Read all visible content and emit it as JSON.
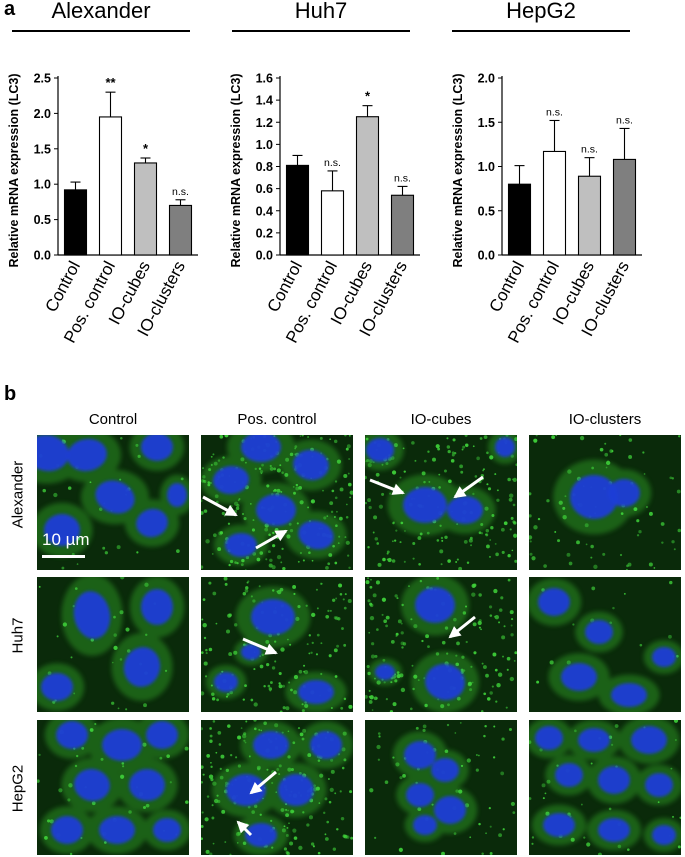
{
  "panel_a_label": "a",
  "panel_b_label": "b",
  "cell_lines": [
    "Alexander",
    "Huh7",
    "HepG2"
  ],
  "chart_data": [
    {
      "type": "bar",
      "title": "Alexander",
      "ylabel": "Relative mRNA expression (LC3)",
      "ylim": [
        0,
        2.5
      ],
      "yticks": [
        "0.0",
        "0.5",
        "1.0",
        "1.5",
        "2.0",
        "2.5"
      ],
      "categories": [
        "Control",
        "Pos. control",
        "IO-cubes",
        "IO-clusters"
      ],
      "values": [
        0.92,
        1.95,
        1.3,
        0.7
      ],
      "errors": [
        0.11,
        0.35,
        0.07,
        0.08
      ],
      "significance": [
        "",
        "**",
        "*",
        "n.s."
      ],
      "bar_colors": [
        "#000000",
        "#ffffff",
        "#bfbfbf",
        "#7f7f7f"
      ]
    },
    {
      "type": "bar",
      "title": "Huh7",
      "ylabel": "Relative mRNA expression (LC3)",
      "ylim": [
        0,
        1.6
      ],
      "yticks": [
        "0.0",
        "0.2",
        "0.4",
        "0.6",
        "0.8",
        "1.0",
        "1.2",
        "1.4",
        "1.6"
      ],
      "categories": [
        "Control",
        "Pos. control",
        "IO-cubes",
        "IO-clusters"
      ],
      "values": [
        0.81,
        0.58,
        1.25,
        0.54
      ],
      "errors": [
        0.09,
        0.18,
        0.1,
        0.08
      ],
      "significance": [
        "",
        "n.s.",
        "*",
        "n.s."
      ],
      "bar_colors": [
        "#000000",
        "#ffffff",
        "#bfbfbf",
        "#7f7f7f"
      ]
    },
    {
      "type": "bar",
      "title": "HepG2",
      "ylabel": "Relative mRNA expression (LC3)",
      "ylim": [
        0,
        2.0
      ],
      "yticks": [
        "0.0",
        "0.5",
        "1.0",
        "1.5",
        "2.0"
      ],
      "categories": [
        "Control",
        "Pos. control",
        "IO-cubes",
        "IO-clusters"
      ],
      "values": [
        0.8,
        1.17,
        0.89,
        1.08
      ],
      "errors": [
        0.21,
        0.35,
        0.21,
        0.35
      ],
      "significance": [
        "",
        "n.s.",
        "n.s.",
        "n.s."
      ],
      "bar_colors": [
        "#000000",
        "#ffffff",
        "#bfbfbf",
        "#7f7f7f"
      ]
    }
  ],
  "panel_b": {
    "columns": [
      "Control",
      "Pos. control",
      "IO-cubes",
      "IO-clusters"
    ],
    "rows": [
      "Alexander",
      "Huh7",
      "HepG2"
    ],
    "scale_bar_label": "10 µm",
    "image_background": "#0a2a0a",
    "nucleus_color": "#1e3dd6",
    "stain_color": "#3fd23a"
  }
}
